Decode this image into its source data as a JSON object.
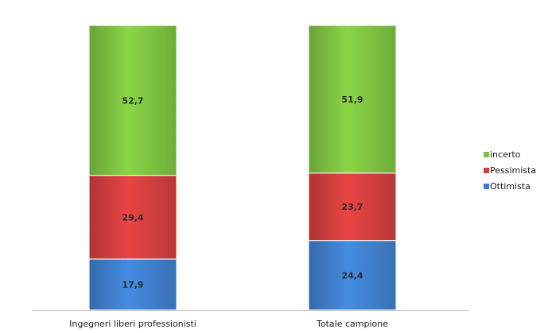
{
  "chart_data": {
    "type": "bar",
    "stacked": true,
    "title": "",
    "xlabel": "",
    "ylabel": "",
    "ylim": [
      0,
      100
    ],
    "grid": false,
    "legend_position": "right",
    "categories": [
      "Ingegneri liberi professionisti",
      "Totale campione"
    ],
    "series": [
      {
        "name": "Ottimista",
        "color": "#3e7dc9",
        "values": [
          17.9,
          24.4
        ],
        "labels": [
          "17,9",
          "24,4"
        ]
      },
      {
        "name": "Pessimista",
        "color": "#cf3d3d",
        "values": [
          29.4,
          23.7
        ],
        "labels": [
          "29,4",
          "23,7"
        ]
      },
      {
        "name": "incerto",
        "color": "#7bbf3f",
        "values": [
          52.7,
          51.9
        ],
        "labels": [
          "52,7",
          "51,9"
        ]
      }
    ],
    "legend_order": [
      "incerto",
      "Pessimista",
      "Ottimista"
    ]
  }
}
